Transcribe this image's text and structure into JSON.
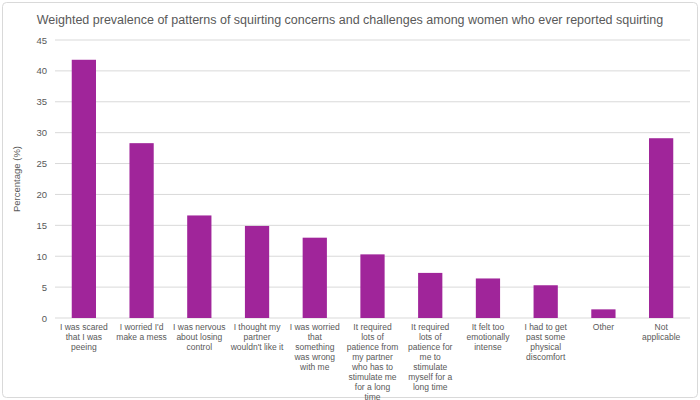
{
  "chart_data": {
    "type": "bar",
    "title": "Weighted prevalence of patterns of squirting concerns and challenges among women who ever reported squirting",
    "ylabel": "Percentage (%)",
    "categories": [
      "I was scared that I was peeing",
      "I worried I'd make a mess",
      "I was nervous about losing control",
      "I thought my partner wouldn't like it",
      "I was worried that something was wrong with me",
      "It required lots of patience from my partner who has to stimulate me for a long time",
      "It required lots of patience for me to stimulate myself for a long time",
      "It felt too emotionally intense",
      "I had to get past some physical discomfort",
      "Other",
      "Not applicable"
    ],
    "values": [
      41.8,
      28.3,
      16.6,
      14.9,
      13.0,
      10.3,
      7.3,
      6.4,
      5.3,
      1.4,
      29.1
    ],
    "color": "#a0259a",
    "ylim": [
      0,
      45
    ],
    "yticks": [
      0,
      5,
      10,
      15,
      20,
      25,
      30,
      35,
      40,
      45
    ],
    "grid": true
  }
}
